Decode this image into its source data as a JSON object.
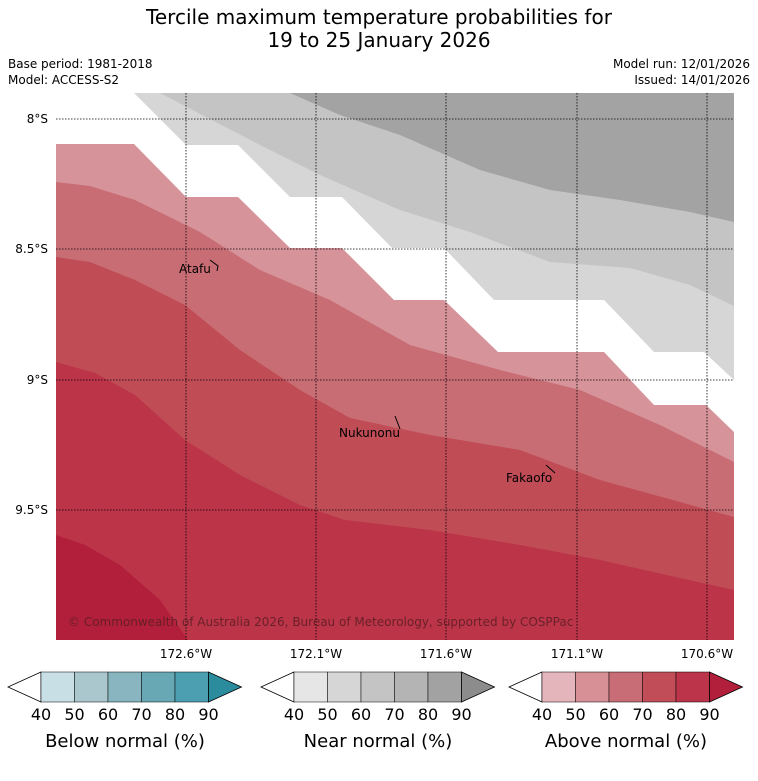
{
  "title": {
    "line1": "Tercile maximum temperature probabilities for",
    "line2": "19 to 25 January 2026"
  },
  "meta": {
    "base_period": "Base period: 1981-2018",
    "model": "Model: ACCESS-S2",
    "model_run": "Model run: 12/01/2026",
    "issued": "Issued: 14/01/2026"
  },
  "map": {
    "lat_labels": [
      "8°S",
      "8.5°S",
      "9°S",
      "9.5°S"
    ],
    "lon_labels": [
      "172.6°W",
      "172.1°W",
      "171.6°W",
      "171.1°W",
      "170.6°W"
    ],
    "places": [
      "Atafu",
      "Nukunonu",
      "Fakaofo"
    ],
    "copyright": "© Commonwealth of Australia 2026, Bureau of Meteorology, supported by COSPPac"
  },
  "colorbars": [
    {
      "name": "below",
      "label": "Below normal (%)",
      "ticks": [
        "40",
        "50",
        "60",
        "70",
        "80",
        "90"
      ],
      "colors": [
        "#c7dfe5",
        "#a9c7cd",
        "#88b5c0",
        "#68a7b4",
        "#4b9fb1",
        "#2b8c9e"
      ]
    },
    {
      "name": "near",
      "label": "Near normal (%)",
      "ticks": [
        "40",
        "50",
        "60",
        "70",
        "80",
        "90"
      ],
      "colors": [
        "#e6e6e6",
        "#d6d6d6",
        "#c4c4c4",
        "#b4b4b4",
        "#a2a2a2",
        "#8c8c8c"
      ]
    },
    {
      "name": "above",
      "label": "Above normal (%)",
      "ticks": [
        "40",
        "50",
        "60",
        "70",
        "80",
        "90"
      ],
      "colors": [
        "#e4b6bc",
        "#d79096",
        "#c86c75",
        "#c04d57",
        "#bb3449",
        "#b21f3b"
      ]
    }
  ]
}
